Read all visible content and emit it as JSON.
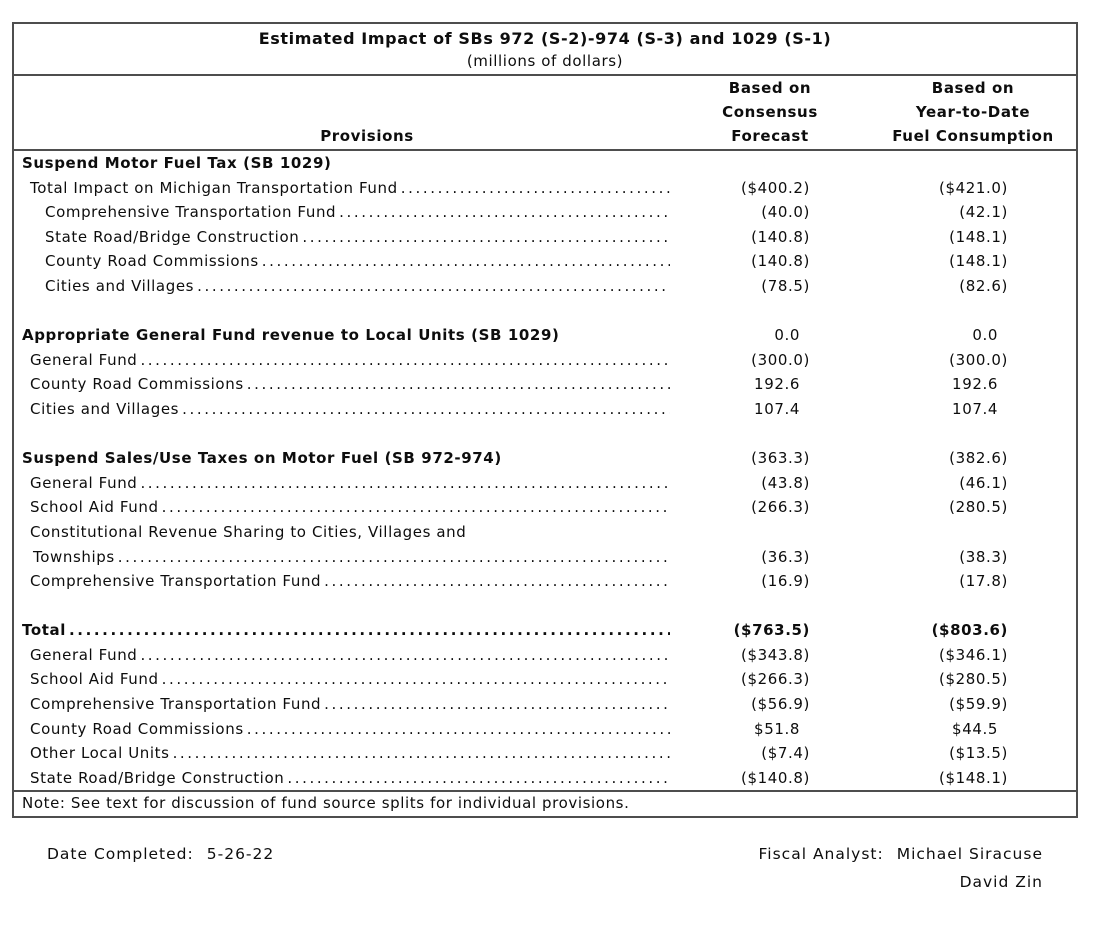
{
  "table": {
    "title": "Estimated Impact of SBs 972 (S-2)-974 (S-3) and 1029 (S-1)",
    "subtitle": "(millions of dollars)",
    "columns": {
      "provisions": "Provisions",
      "col1": [
        "Based on",
        "Consensus",
        "Forecast"
      ],
      "col2": [
        "Based on",
        "Year-to-Date",
        "Fuel Consumption"
      ]
    },
    "rows": [
      {
        "type": "section",
        "indent": 0,
        "label": "Suspend Motor Fuel Tax (SB 1029)",
        "dots": false,
        "v1": "",
        "v2": ""
      },
      {
        "type": "item",
        "indent": 1,
        "label": "Total Impact on Michigan Transportation Fund",
        "dots": true,
        "v1": "($400.2)",
        "v2": "($421.0)"
      },
      {
        "type": "item",
        "indent": 2,
        "label": "Comprehensive Transportation Fund",
        "dots": true,
        "v1": "(40.0)",
        "v2": "(42.1)"
      },
      {
        "type": "item",
        "indent": 2,
        "label": "State Road/Bridge Construction",
        "dots": true,
        "v1": "(140.8)",
        "v2": "(148.1)"
      },
      {
        "type": "item",
        "indent": 2,
        "label": "County Road Commissions",
        "dots": true,
        "v1": "(140.8)",
        "v2": "(148.1)"
      },
      {
        "type": "item",
        "indent": 2,
        "label": "Cities and Villages",
        "dots": true,
        "v1": "(78.5)",
        "v2": "(82.6)"
      },
      {
        "type": "blank"
      },
      {
        "type": "section",
        "indent": 0,
        "label": "Appropriate General Fund revenue to Local Units (SB 1029)",
        "dots": false,
        "v1": "0.0",
        "v2": "0.0"
      },
      {
        "type": "item",
        "indent": 1,
        "label": "General Fund",
        "dots": true,
        "v1": "(300.0)",
        "v2": "(300.0)"
      },
      {
        "type": "item",
        "indent": 1,
        "label": "County Road Commissions",
        "dots": true,
        "v1": "192.6",
        "v2": "192.6"
      },
      {
        "type": "item",
        "indent": 1,
        "label": "Cities and Villages",
        "dots": true,
        "v1": "107.4",
        "v2": "107.4"
      },
      {
        "type": "blank"
      },
      {
        "type": "section",
        "indent": 0,
        "label": "Suspend Sales/Use Taxes on Motor Fuel (SB 972-974)",
        "dots": false,
        "v1": "(363.3)",
        "v2": "(382.6)"
      },
      {
        "type": "item",
        "indent": 1,
        "label": "General Fund",
        "dots": true,
        "v1": "(43.8)",
        "v2": "(46.1)"
      },
      {
        "type": "item",
        "indent": 1,
        "label": "School Aid Fund",
        "dots": true,
        "v1": "(266.3)",
        "v2": "(280.5)"
      },
      {
        "type": "item",
        "indent": 1,
        "label": "Constitutional Revenue Sharing to Cities, Villages and",
        "dots": false,
        "v1": "",
        "v2": ""
      },
      {
        "type": "item",
        "indent": "1t",
        "label": "Townships",
        "dots": true,
        "v1": "(36.3)",
        "v2": "(38.3)"
      },
      {
        "type": "item",
        "indent": 1,
        "label": "Comprehensive Transportation Fund",
        "dots": true,
        "v1": "(16.9)",
        "v2": "(17.8)",
        "underline": true
      },
      {
        "type": "blank"
      },
      {
        "type": "total",
        "indent": 0,
        "label": "Total",
        "dots": true,
        "v1": "($763.5)",
        "v2": "($803.6)"
      },
      {
        "type": "item",
        "indent": 1,
        "label": "General Fund",
        "dots": true,
        "v1": "($343.8)",
        "v2": "($346.1)"
      },
      {
        "type": "item",
        "indent": 1,
        "label": "School Aid Fund",
        "dots": true,
        "v1": "($266.3)",
        "v2": "($280.5)"
      },
      {
        "type": "item",
        "indent": 1,
        "label": "Comprehensive Transportation Fund",
        "dots": true,
        "v1": "($56.9)",
        "v2": "($59.9)"
      },
      {
        "type": "item",
        "indent": 1,
        "label": "County Road Commissions",
        "dots": true,
        "v1": "$51.8",
        "v2": "$44.5"
      },
      {
        "type": "item",
        "indent": 1,
        "label": "Other Local Units",
        "dots": true,
        "v1": "($7.4)",
        "v2": "($13.5)"
      },
      {
        "type": "item",
        "indent": 1,
        "label": "State Road/Bridge Construction",
        "dots": true,
        "v1": "($140.8)",
        "v2": "($148.1)"
      }
    ],
    "note": "Note: See text for discussion of fund source splits for individual provisions."
  },
  "footer": {
    "date_label": "Date Completed:",
    "date_value": "5-26-22",
    "analyst_label": "Fiscal Analyst:",
    "analysts": [
      "Michael Siracuse",
      "David Zin"
    ]
  }
}
